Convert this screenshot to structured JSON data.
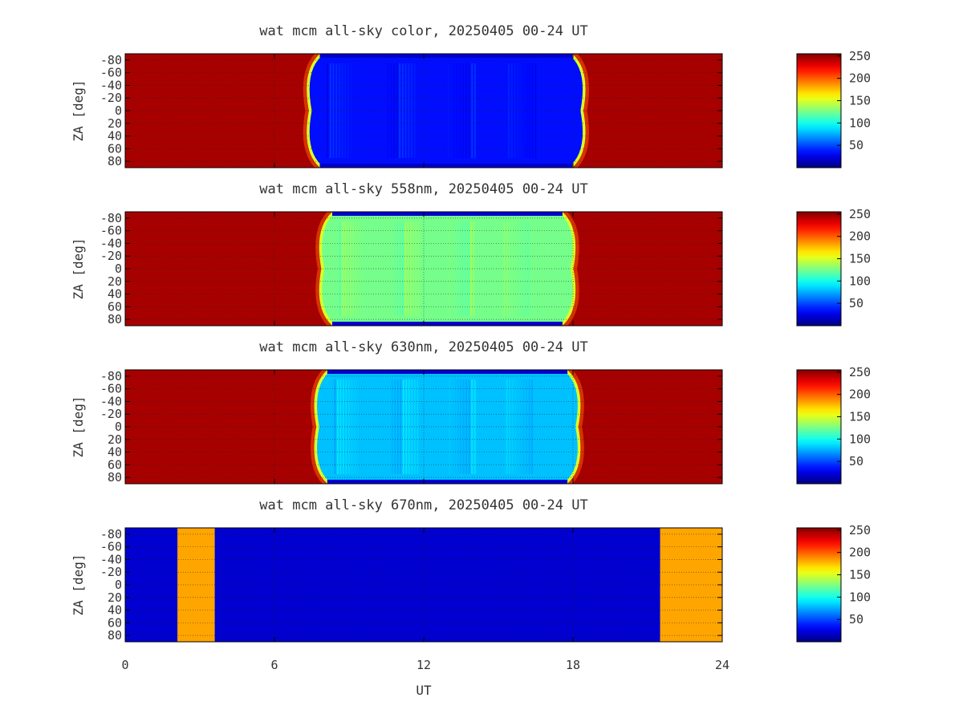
{
  "chart_data": [
    {
      "type": "heatmap",
      "title": "wat mcm all-sky color, 20250405 00-24 UT",
      "ylabel": "ZA [deg]",
      "xlabel": "",
      "xlim": [
        0,
        24
      ],
      "ylim": [
        -90,
        90
      ],
      "clim": [
        0,
        255
      ],
      "colorbar_ticks": [
        50,
        100,
        150,
        200,
        250
      ],
      "yticks": [
        "-80",
        "-60",
        "-40",
        "-20",
        "0",
        "20",
        "40",
        "60",
        "80"
      ],
      "grid": true,
      "day_value": 245,
      "night_start_ut": 7.5,
      "night_end_ut": 18.3,
      "night_mean_value": 35
    },
    {
      "type": "heatmap",
      "title": "wat mcm all-sky 558nm, 20250405 00-24 UT",
      "ylabel": "ZA [deg]",
      "xlabel": "",
      "xlim": [
        0,
        24
      ],
      "ylim": [
        -90,
        90
      ],
      "clim": [
        0,
        255
      ],
      "colorbar_ticks": [
        50,
        100,
        150,
        200,
        250
      ],
      "yticks": [
        "-80",
        "-60",
        "-40",
        "-20",
        "0",
        "20",
        "40",
        "60",
        "80"
      ],
      "grid": true,
      "day_value": 245,
      "night_start_ut": 8.0,
      "night_end_ut": 17.9,
      "night_mean_value": 125
    },
    {
      "type": "heatmap",
      "title": "wat mcm all-sky 630nm, 20250405 00-24 UT",
      "ylabel": "ZA [deg]",
      "xlabel": "",
      "xlim": [
        0,
        24
      ],
      "ylim": [
        -90,
        90
      ],
      "clim": [
        0,
        255
      ],
      "colorbar_ticks": [
        50,
        100,
        150,
        200,
        250
      ],
      "yticks": [
        "-80",
        "-60",
        "-40",
        "-20",
        "0",
        "20",
        "40",
        "60",
        "80"
      ],
      "grid": true,
      "day_value": 245,
      "night_start_ut": 7.8,
      "night_end_ut": 18.1,
      "night_mean_value": 80
    },
    {
      "type": "heatmap",
      "title": "wat mcm all-sky 670nm, 20250405 00-24 UT",
      "ylabel": "ZA [deg]",
      "xlabel": "UT",
      "xlim": [
        0,
        24
      ],
      "ylim": [
        -90,
        90
      ],
      "clim": [
        0,
        255
      ],
      "colorbar_ticks": [
        50,
        100,
        150,
        200,
        250
      ],
      "yticks": [
        "-80",
        "-60",
        "-40",
        "-20",
        "0",
        "20",
        "40",
        "60",
        "80"
      ],
      "xticks": [
        "0",
        "6",
        "12",
        "18",
        "24"
      ],
      "grid": true,
      "background_value": 20,
      "orange_bands_ut": [
        [
          2.1,
          3.6
        ],
        [
          21.5,
          24.0
        ]
      ],
      "band_value": 185
    }
  ]
}
